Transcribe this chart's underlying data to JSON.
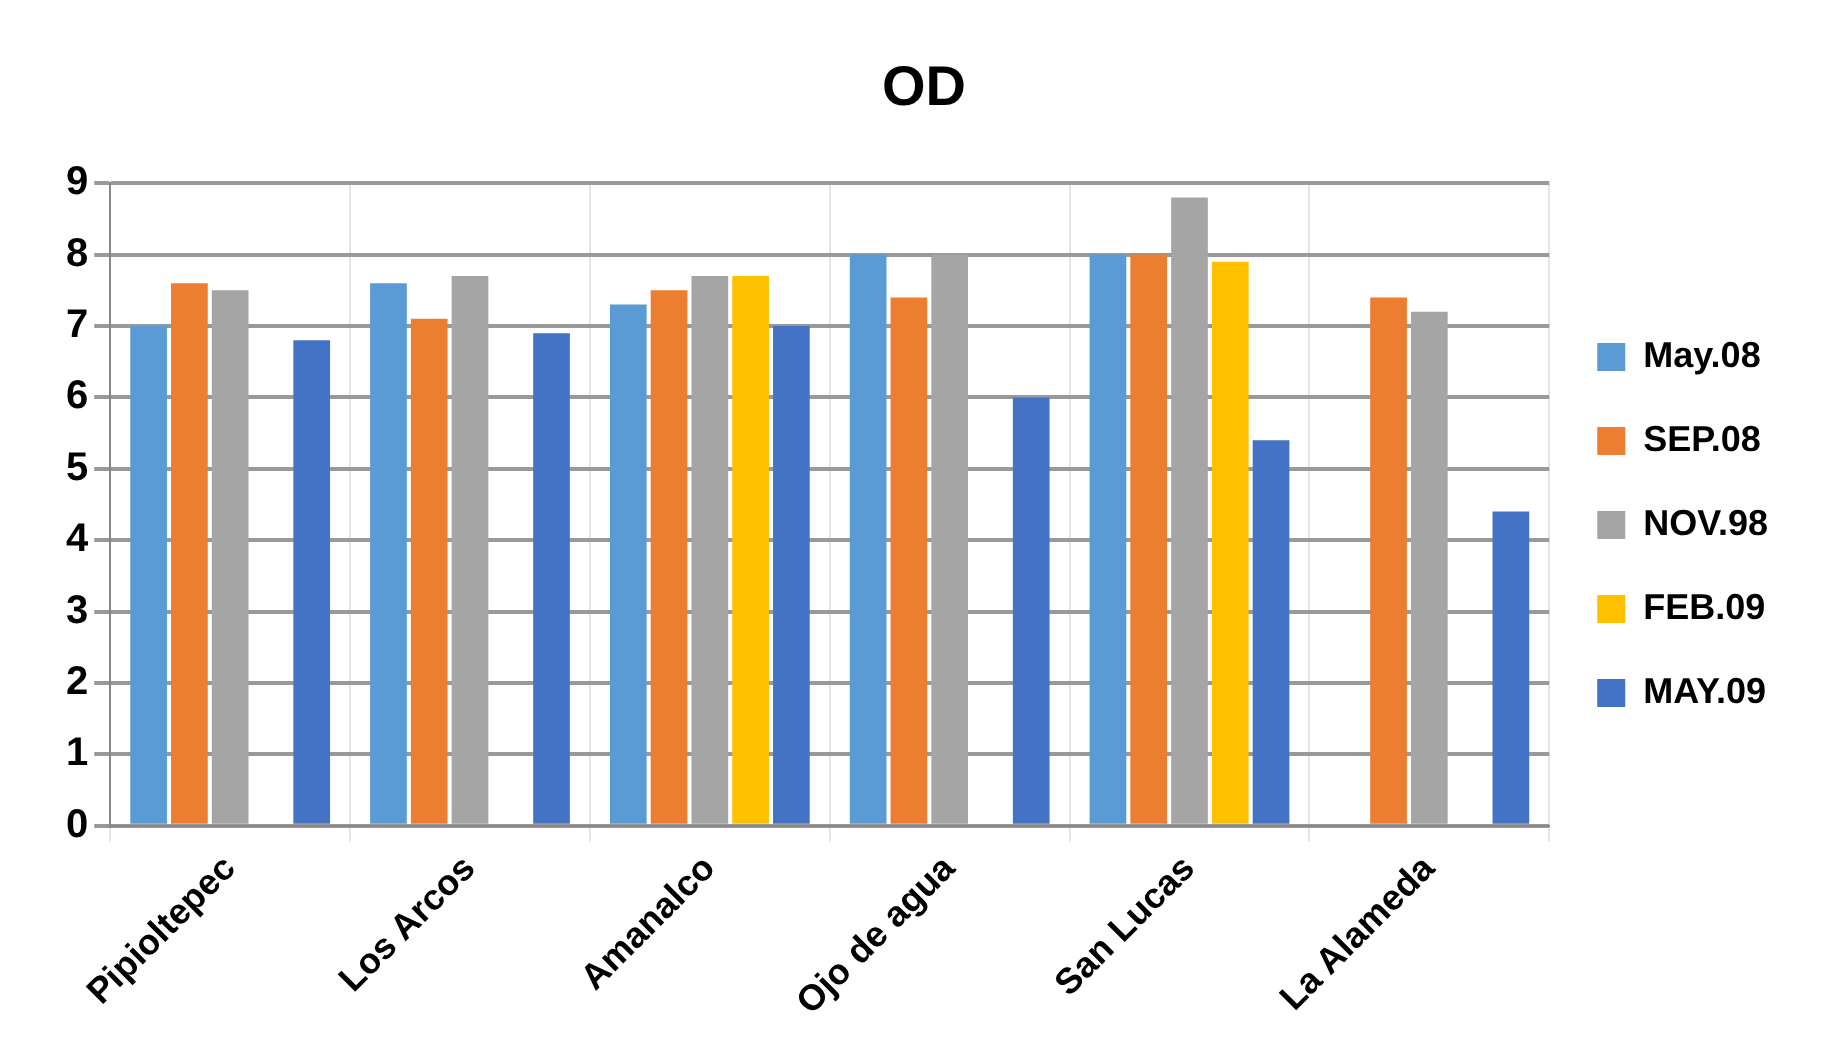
{
  "chart_data": {
    "type": "bar",
    "title": "OD",
    "categories": [
      "Pipioltepec",
      "Los Arcos",
      "Amanalco",
      "Ojo de agua",
      "San Lucas",
      "La Alameda"
    ],
    "series": [
      {
        "name": "May.08",
        "color": "#5b9bd5",
        "values": [
          7.0,
          7.6,
          7.3,
          8.0,
          8.0,
          null
        ]
      },
      {
        "name": "SEP.08",
        "color": "#ed7d31",
        "values": [
          7.6,
          7.1,
          7.5,
          7.4,
          8.0,
          7.4
        ]
      },
      {
        "name": "NOV.98",
        "color": "#a5a5a5",
        "values": [
          7.5,
          7.7,
          7.7,
          8.0,
          8.8,
          7.2
        ]
      },
      {
        "name": "FEB.09",
        "color": "#ffc000",
        "values": [
          null,
          null,
          7.7,
          null,
          7.9,
          null
        ]
      },
      {
        "name": "MAY.09",
        "color": "#4472c4",
        "values": [
          6.8,
          6.9,
          7.0,
          6.0,
          5.4,
          4.4
        ]
      }
    ],
    "ylim": [
      0,
      9
    ],
    "yticks": [
      0,
      1,
      2,
      3,
      4,
      5,
      6,
      7,
      8,
      9
    ],
    "grid": true,
    "legend": "right"
  }
}
